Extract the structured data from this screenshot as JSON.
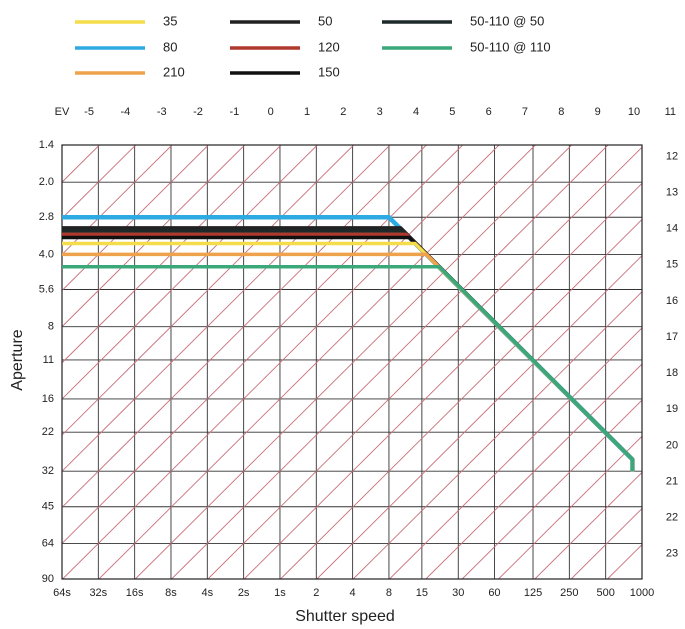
{
  "chart_data": {
    "type": "line",
    "x_label": "Shutter speed",
    "y_label": "Aperture",
    "x_log": true,
    "y_log": true,
    "xlim": [
      64,
      0.001
    ],
    "ylim": [
      1.4,
      90
    ],
    "xticks": [
      {
        "value": 64,
        "label": "64s"
      },
      {
        "value": 32,
        "label": "32s"
      },
      {
        "value": 16,
        "label": "16s"
      },
      {
        "value": 8,
        "label": "8s"
      },
      {
        "value": 4,
        "label": "4s"
      },
      {
        "value": 2,
        "label": "2s"
      },
      {
        "value": 1,
        "label": "1s"
      },
      {
        "value": 0.5,
        "label": "2"
      },
      {
        "value": 0.25,
        "label": "4"
      },
      {
        "value": 0.125,
        "label": "8"
      },
      {
        "value": 0.0667,
        "label": "15"
      },
      {
        "value": 0.0333,
        "label": "30"
      },
      {
        "value": 0.0167,
        "label": "60"
      },
      {
        "value": 0.008,
        "label": "125"
      },
      {
        "value": 0.004,
        "label": "250"
      },
      {
        "value": 0.002,
        "label": "500"
      },
      {
        "value": 0.001,
        "label": "1000"
      }
    ],
    "yticks": [
      1.4,
      {
        "value": 2,
        "label": "2.0"
      },
      2.8,
      {
        "value": 4,
        "label": "4.0"
      },
      5.6,
      8,
      11,
      16,
      22,
      32,
      45,
      64,
      90
    ],
    "grid": true,
    "ev_title": "EV",
    "ev_ticks": [
      -5,
      -4,
      -3,
      -2,
      -1,
      0,
      1,
      2,
      3,
      4,
      5,
      6,
      7,
      8,
      9,
      10,
      11,
      12,
      13,
      14,
      15,
      16,
      17,
      18,
      19,
      20,
      21,
      22,
      23
    ],
    "legend": "top",
    "series": [
      {
        "name": "35",
        "color": "#f5dc4a",
        "x": [
          64,
          0.076,
          0.0012,
          0.0012
        ],
        "values": [
          3.6,
          3.6,
          28.6,
          32
        ]
      },
      {
        "name": "50",
        "color": "#222222",
        "x": [
          64,
          0.1,
          0.0012,
          0.0012
        ],
        "values": [
          3.1,
          3.1,
          28.6,
          32
        ]
      },
      {
        "name": "50-110 @ 50",
        "color": "#1e2a2a",
        "x": [
          64,
          0.096,
          0.0012,
          0.0012
        ],
        "values": [
          3.2,
          3.2,
          28.6,
          32
        ]
      },
      {
        "name": "80",
        "color": "#2eaae2",
        "x": [
          64,
          0.125,
          0.0012,
          0.0012
        ],
        "values": [
          2.8,
          2.8,
          28.6,
          32
        ]
      },
      {
        "name": "120",
        "color": "#b0392d",
        "x": [
          64,
          0.09,
          0.0012,
          0.0012
        ],
        "values": [
          3.3,
          3.3,
          28.6,
          32
        ]
      },
      {
        "name": "50-110 @ 110",
        "color": "#3aa878",
        "x": [
          64,
          0.048,
          0.0012,
          0.0012
        ],
        "values": [
          4.5,
          4.5,
          28.6,
          32
        ]
      },
      {
        "name": "210",
        "color": "#eea24c",
        "x": [
          64,
          0.061,
          0.0012,
          0.0012
        ],
        "values": [
          4,
          4,
          28.6,
          32
        ]
      },
      {
        "name": "150",
        "color": "#111111",
        "x": [
          64,
          0.085,
          0.0012,
          0.0012
        ],
        "values": [
          3.4,
          3.4,
          28.6,
          32
        ]
      }
    ]
  }
}
